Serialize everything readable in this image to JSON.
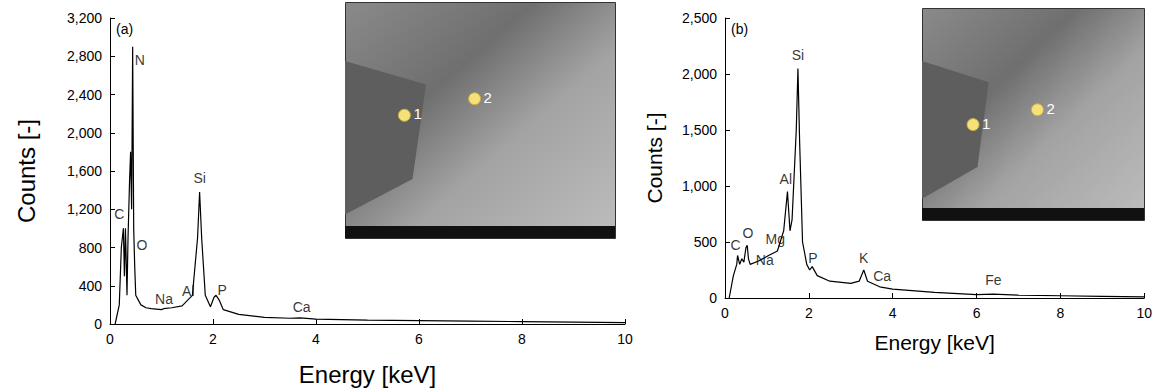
{
  "chart_data": [
    {
      "type": "line",
      "panel": "(a)",
      "x_label": "Energy [keV]",
      "y_label": "Counts [-]",
      "color": "#000000",
      "grid": false,
      "x": [
        0.1,
        0.18,
        0.22,
        0.26,
        0.28,
        0.3,
        0.33,
        0.35,
        0.38,
        0.4,
        0.42,
        0.44,
        0.46,
        0.48,
        0.5,
        0.55,
        0.6,
        0.7,
        0.8,
        1.0,
        1.04,
        1.2,
        1.4,
        1.49,
        1.6,
        1.7,
        1.74,
        1.78,
        1.85,
        1.95,
        2.02,
        2.06,
        2.12,
        2.2,
        2.5,
        3,
        3.5,
        3.69,
        4,
        5,
        6,
        7,
        8,
        9,
        10
      ],
      "values": [
        0,
        200,
        800,
        1000,
        500,
        1000,
        300,
        900,
        1500,
        1800,
        1200,
        2900,
        1000,
        600,
        300,
        250,
        200,
        170,
        160,
        150,
        160,
        170,
        190,
        240,
        300,
        900,
        1380,
        900,
        300,
        180,
        280,
        300,
        250,
        150,
        100,
        70,
        60,
        65,
        50,
        40,
        35,
        30,
        25,
        20,
        15
      ],
      "xlim": [
        0,
        10
      ],
      "xticks": [
        0,
        2,
        4,
        6,
        8,
        10
      ],
      "ylim": [
        0,
        3200
      ],
      "yticks": [
        0,
        400,
        800,
        1200,
        1600,
        2000,
        2400,
        2800,
        3200
      ],
      "annotations": [
        {
          "text": "C",
          "x": 0.18,
          "y": 1150
        },
        {
          "text": "N",
          "x": 0.58,
          "y": 2760
        },
        {
          "text": "O",
          "x": 0.62,
          "y": 830
        },
        {
          "text": "Na",
          "x": 1.05,
          "y": 260
        },
        {
          "text": "Al",
          "x": 1.52,
          "y": 350
        },
        {
          "text": "Si",
          "x": 1.74,
          "y": 1530
        },
        {
          "text": "P",
          "x": 2.18,
          "y": 360
        },
        {
          "text": "Ca",
          "x": 3.72,
          "y": 180
        }
      ],
      "inset": {
        "points": [
          "1",
          "2"
        ]
      }
    },
    {
      "type": "line",
      "panel": "(b)",
      "x_label": "Energy [keV]",
      "y_label": "Counts [-]",
      "color": "#000000",
      "grid": false,
      "x": [
        0.1,
        0.2,
        0.28,
        0.3,
        0.35,
        0.4,
        0.45,
        0.5,
        0.53,
        0.56,
        0.6,
        0.8,
        1.04,
        1.25,
        1.4,
        1.49,
        1.55,
        1.6,
        1.7,
        1.74,
        1.78,
        1.85,
        1.95,
        2.02,
        2.08,
        2.2,
        2.5,
        3,
        3.2,
        3.31,
        3.4,
        3.69,
        4,
        5,
        6,
        6.4,
        7,
        8,
        9,
        10
      ],
      "values": [
        0,
        200,
        300,
        380,
        300,
        350,
        320,
        450,
        470,
        350,
        300,
        330,
        380,
        420,
        600,
        950,
        600,
        700,
        1500,
        2050,
        1400,
        500,
        300,
        250,
        280,
        200,
        150,
        130,
        150,
        250,
        150,
        100,
        80,
        50,
        30,
        35,
        25,
        20,
        15,
        10
      ],
      "xlim": [
        0,
        10
      ],
      "xticks": [
        0,
        2,
        4,
        6,
        8,
        10
      ],
      "ylim": [
        0,
        2500
      ],
      "yticks": [
        0,
        500,
        1000,
        1500,
        2000,
        2500
      ],
      "annotations": [
        {
          "text": "C",
          "x": 0.25,
          "y": 470
        },
        {
          "text": "O",
          "x": 0.55,
          "y": 580
        },
        {
          "text": "Mg",
          "x": 1.2,
          "y": 530
        },
        {
          "text": "Na",
          "x": 0.95,
          "y": 340
        },
        {
          "text": "Al",
          "x": 1.45,
          "y": 1060
        },
        {
          "text": "Si",
          "x": 1.74,
          "y": 2170
        },
        {
          "text": "P",
          "x": 2.1,
          "y": 360
        },
        {
          "text": "K",
          "x": 3.31,
          "y": 360
        },
        {
          "text": "Ca",
          "x": 3.75,
          "y": 200
        },
        {
          "text": "Fe",
          "x": 6.4,
          "y": 160
        }
      ],
      "inset": {
        "points": [
          "1",
          "2"
        ]
      }
    }
  ]
}
